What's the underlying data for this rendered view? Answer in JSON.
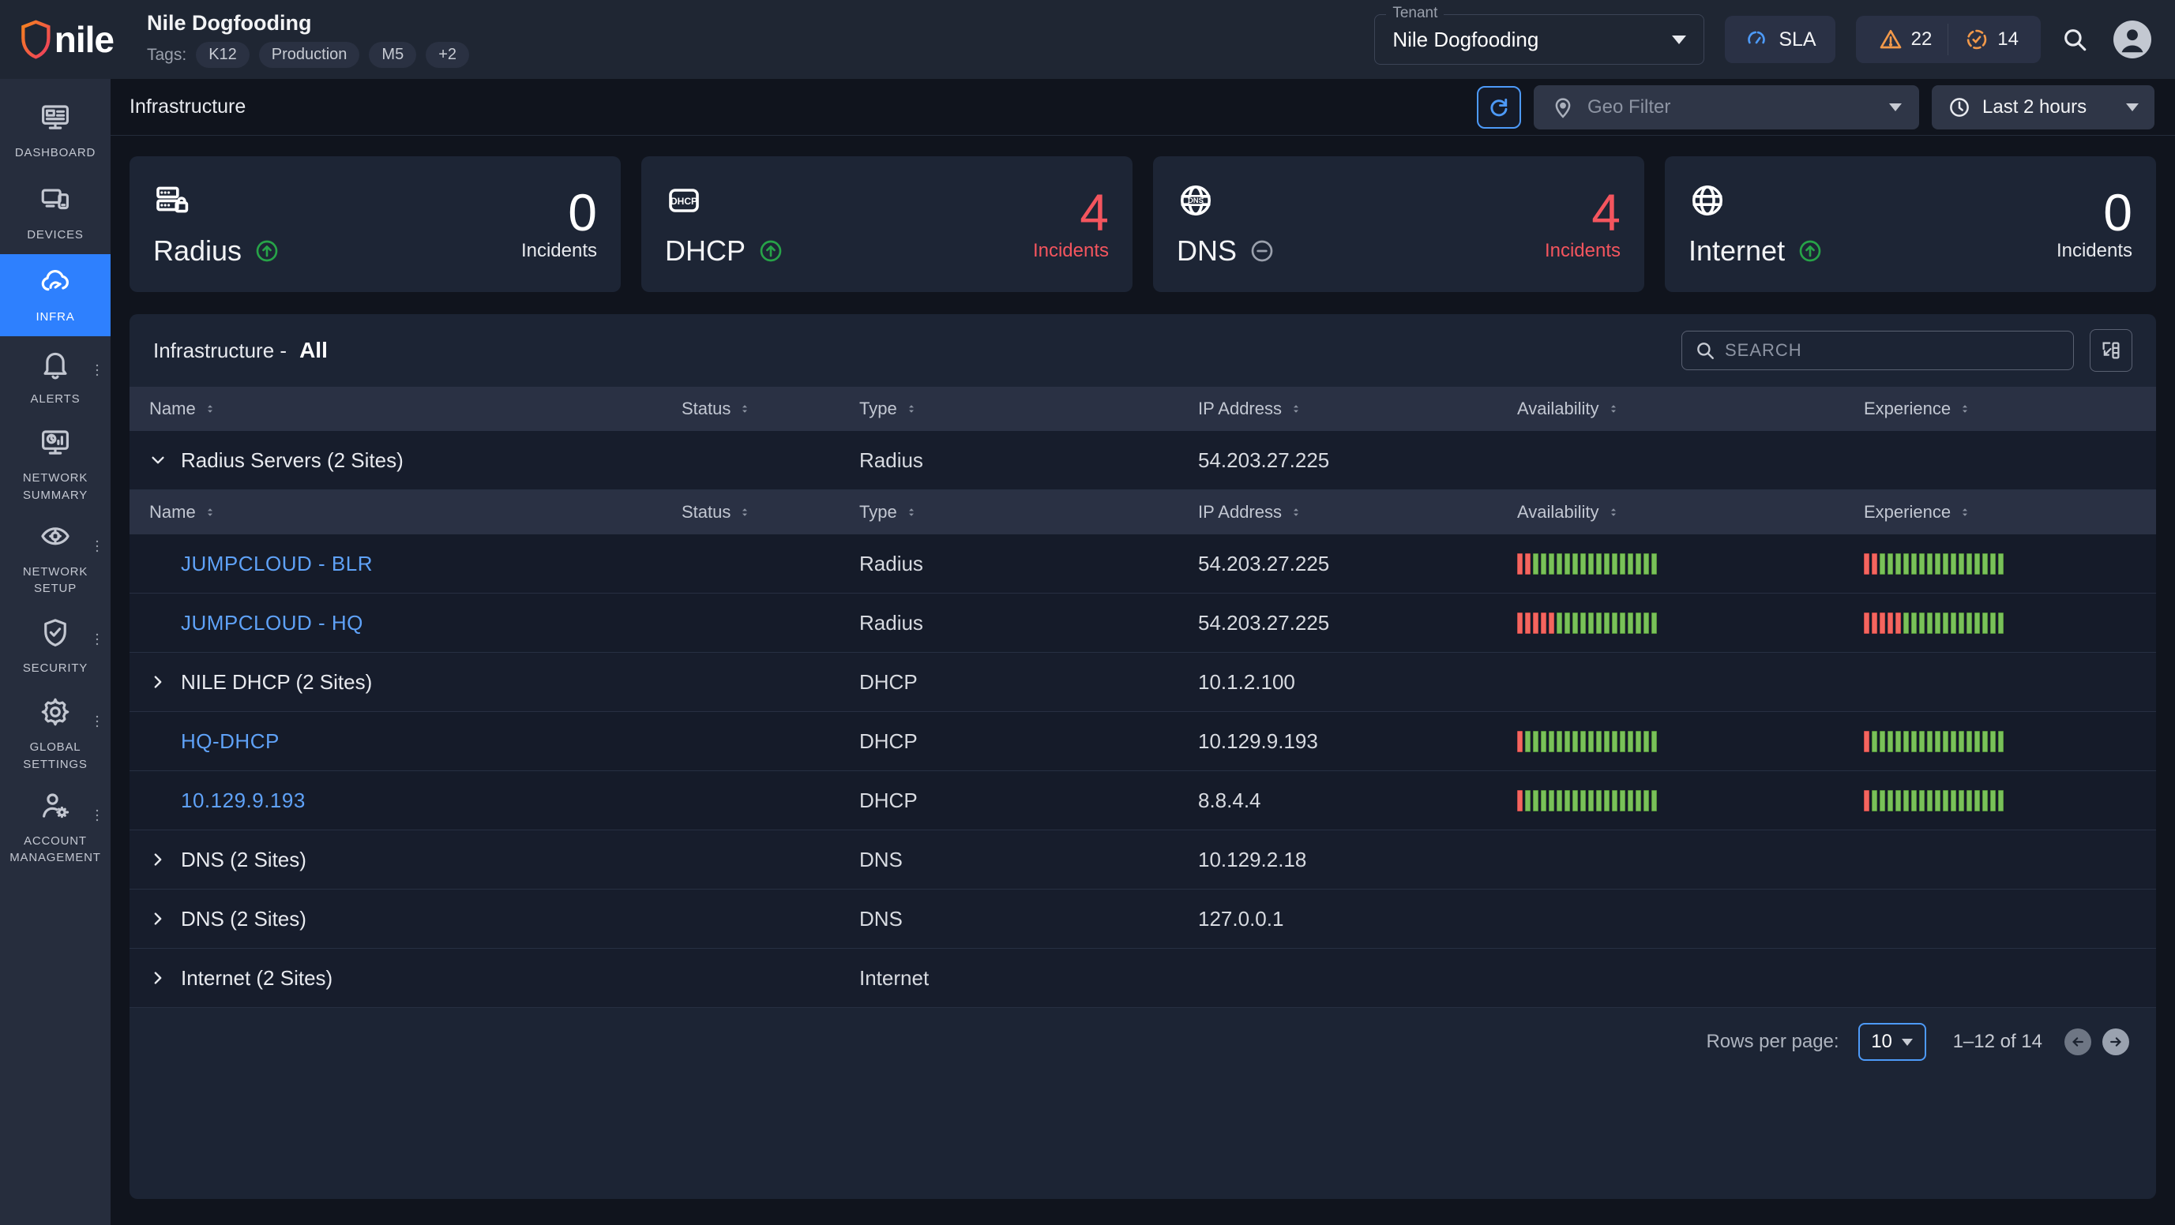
{
  "header": {
    "logo_text": "nile",
    "title": "Nile Dogfooding",
    "tags_label": "Tags:",
    "tags": [
      "K12",
      "Production",
      "M5",
      "+2"
    ],
    "tenant_label": "Tenant",
    "tenant_value": "Nile Dogfooding",
    "sla_label": "SLA",
    "warning_count": "22",
    "sla_met_count": "14"
  },
  "sidebar": {
    "items": [
      {
        "label": "DASHBOARD",
        "icon": "dashboard-icon",
        "active": false,
        "kebab": false
      },
      {
        "label": "DEVICES",
        "icon": "devices-icon",
        "active": false,
        "kebab": false
      },
      {
        "label": "INFRA",
        "icon": "infra-icon",
        "active": true,
        "kebab": false
      },
      {
        "label": "ALERTS",
        "icon": "alerts-icon",
        "active": false,
        "kebab": true
      },
      {
        "label": "NETWORK SUMMARY",
        "icon": "network-summary-icon",
        "active": false,
        "kebab": false
      },
      {
        "label": "NETWORK SETUP",
        "icon": "network-setup-icon",
        "active": false,
        "kebab": true
      },
      {
        "label": "SECURITY",
        "icon": "security-icon",
        "active": false,
        "kebab": true
      },
      {
        "label": "GLOBAL SETTINGS",
        "icon": "global-settings-icon",
        "active": false,
        "kebab": true
      },
      {
        "label": "ACCOUNT MANAGEMENT",
        "icon": "account-management-icon",
        "active": false,
        "kebab": true
      }
    ]
  },
  "toolbar": {
    "title": "Infrastructure",
    "geo_filter_placeholder": "Geo Filter",
    "time_range": "Last 2 hours"
  },
  "cards": [
    {
      "name": "Radius",
      "icon": "radius-server-icon",
      "trend": "up",
      "count": "0",
      "count_label": "Incidents",
      "alert": false
    },
    {
      "name": "DHCP",
      "icon": "dhcp-icon",
      "trend": "up",
      "count": "4",
      "count_label": "Incidents",
      "alert": true
    },
    {
      "name": "DNS",
      "icon": "dns-globe-icon",
      "trend": "neutral",
      "count": "4",
      "count_label": "Incidents",
      "alert": true
    },
    {
      "name": "Internet",
      "icon": "internet-globe-icon",
      "trend": "up",
      "count": "0",
      "count_label": "Incidents",
      "alert": false
    }
  ],
  "table": {
    "title_prefix": "Infrastructure -",
    "title_scope": "All",
    "search_placeholder": "SEARCH",
    "columns": [
      "Name",
      "Status",
      "Type",
      "IP Address",
      "Availability",
      "Experience"
    ],
    "rows": [
      {
        "kind": "group",
        "expanded": true,
        "name": "Radius Servers (2 Sites)",
        "status": "red",
        "type": "Radius",
        "ip": "54.203.27.225"
      },
      {
        "kind": "subheader"
      },
      {
        "kind": "leaf",
        "link": true,
        "name": "JUMPCLOUD  - BLR",
        "status": "green",
        "type": "Radius",
        "ip": "54.203.27.225",
        "availability": {
          "red": 2,
          "green": 16
        },
        "experience": {
          "red": 2,
          "green": 16
        }
      },
      {
        "kind": "leaf",
        "link": true,
        "name": "JUMPCLOUD - HQ",
        "status": "green",
        "type": "Radius",
        "ip": "54.203.27.225",
        "availability": {
          "red": 5,
          "green": 13
        },
        "experience": {
          "red": 5,
          "green": 13
        }
      },
      {
        "kind": "group",
        "expanded": false,
        "name": "NILE DHCP (2 Sites)",
        "status": "green",
        "type": "DHCP",
        "ip": "10.1.2.100"
      },
      {
        "kind": "leaf",
        "link": true,
        "name": "HQ-DHCP",
        "status": "green",
        "type": "DHCP",
        "ip": "10.129.9.193",
        "availability": {
          "red": 1,
          "green": 17
        },
        "experience": {
          "red": 1,
          "green": 17
        }
      },
      {
        "kind": "leaf",
        "link": true,
        "name": "10.129.9.193",
        "status": "red",
        "type": "DHCP",
        "ip": "8.8.4.4",
        "availability": {
          "red": 1,
          "green": 17
        },
        "experience": {
          "red": 1,
          "green": 17
        }
      },
      {
        "kind": "group",
        "expanded": false,
        "name": "DNS (2 Sites)",
        "status": "green",
        "type": "DNS",
        "ip": "10.129.2.18"
      },
      {
        "kind": "group",
        "expanded": false,
        "name": "DNS (2 Sites)",
        "status": "green",
        "type": "DNS",
        "ip": "127.0.0.1"
      },
      {
        "kind": "group",
        "expanded": false,
        "name": "Internet (2 Sites)",
        "status": "green",
        "type": "Internet",
        "ip": ""
      }
    ],
    "pagination": {
      "rows_per_page_label": "Rows per page:",
      "rows_per_page": "10",
      "range": "1–12 of 14"
    }
  },
  "colors": {
    "accent_blue": "#2e80fe",
    "link_blue": "#5fa2f8",
    "status_red": "#f4555e",
    "status_green": "#2aa74c",
    "bar_green": "#79c159",
    "bar_red": "#f4655f",
    "warn_orange": "#f2994a",
    "incident_red": "#f4555e"
  }
}
